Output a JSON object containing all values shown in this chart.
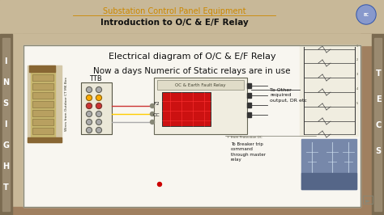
{
  "bg_outer": "#b8a888",
  "bg_header": "#c8b898",
  "title1": "Substation Control Panel Equipment",
  "title1_color": "#cc8800",
  "title2": "Introduction to O/C & E/F Relay",
  "title2_color": "#111111",
  "line1": "Electrical diagram of O/C & E/F Relay",
  "line2": "Now a days Numeric of Static relays are in use",
  "left_letters": [
    "I",
    "N",
    "S",
    "I",
    "G",
    "H",
    "T"
  ],
  "right_letters": [
    "T",
    "E",
    "C",
    "S"
  ],
  "sidebar_color": "#7a6a50",
  "sidebar_inner": "#9a8a70",
  "content_bg": "#f8f6f0",
  "content_frame_color": "#8a7a60",
  "ttb_label": "TTB",
  "relay_label": "OC & Earth Fault Relay",
  "to_other_text": "To Other\nrequired\noutput, DR etc",
  "f2_label": "F2",
  "cc_label": "CC",
  "trip_text": "To Breaker trip\ncommand\nthrough master\nrelay",
  "wire_label": "Wires from Outdoor CT MK Box",
  "red_dot_color": "#cc0000",
  "dot_row_colors": [
    "#aaaaaa",
    "#aaaaaa",
    "#ffaa00",
    "#ffaa00",
    "#cc3333",
    "#cc3333",
    "#aaaaaa",
    "#aaaaaa",
    "#aaaaaa",
    "#aaaaaa",
    "#aaaaaa",
    "#aaaaaa"
  ]
}
